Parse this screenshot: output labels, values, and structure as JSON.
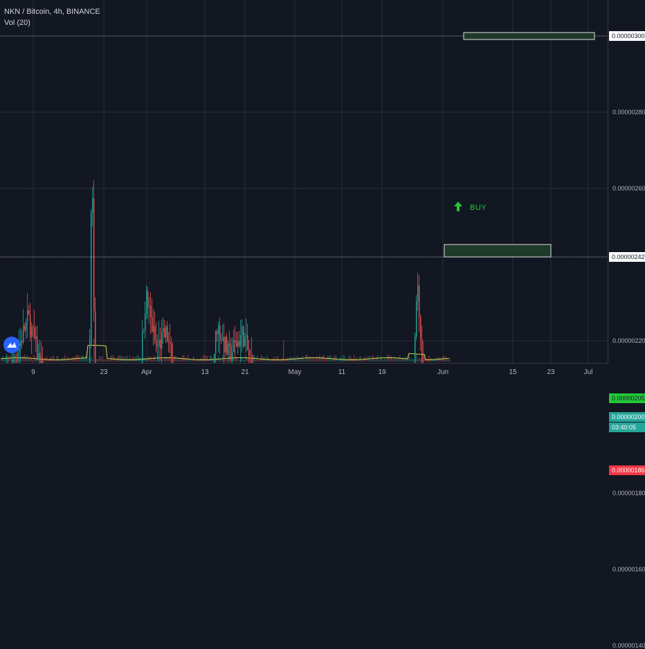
{
  "legend": {
    "symbol": "NKN / Bitcoin, 4h, BINANCE",
    "volume": "Vol (20)"
  },
  "price_axis": {
    "labels": [
      "0.00000300",
      "0.00000280",
      "0.00000260",
      "0.00000242",
      "0.00000220",
      "0.00000205",
      "0.00000200",
      "0.00000186",
      "0.00000180",
      "0.00000160",
      "0.00000140"
    ],
    "tags": [
      {
        "text": "0.00000300",
        "bg": "#ffffff",
        "fg": "#131722"
      },
      {
        "text": "0.00000242",
        "bg": "#ffffff",
        "fg": "#131722"
      },
      {
        "text": "0.00000205",
        "bg": "#22c938",
        "fg": "#131722"
      },
      {
        "text": "0.00000200",
        "bg": "#26a69a",
        "fg": "#ffffff"
      },
      {
        "text": "03:40:05",
        "bg": "#26a69a",
        "fg": "#ffffff"
      },
      {
        "text": "0.00000186",
        "bg": "#f23645",
        "fg": "#ffffff"
      }
    ]
  },
  "time_axis": {
    "labels": [
      "9",
      "23",
      "Apr",
      "13",
      "21",
      "May",
      "11",
      "19",
      "Jun",
      "15",
      "23",
      "Jul"
    ]
  },
  "annotations": {
    "buy_text": "BUY"
  },
  "colors": {
    "background": "#131722",
    "grid": "#2a2e39",
    "up": "#26a69a",
    "down": "#ef5350",
    "support_line": "#f23645",
    "buy_line": "#22c938",
    "volume_ma": "#d4d94b",
    "target_box_fill": "#1e3a2a"
  }
}
